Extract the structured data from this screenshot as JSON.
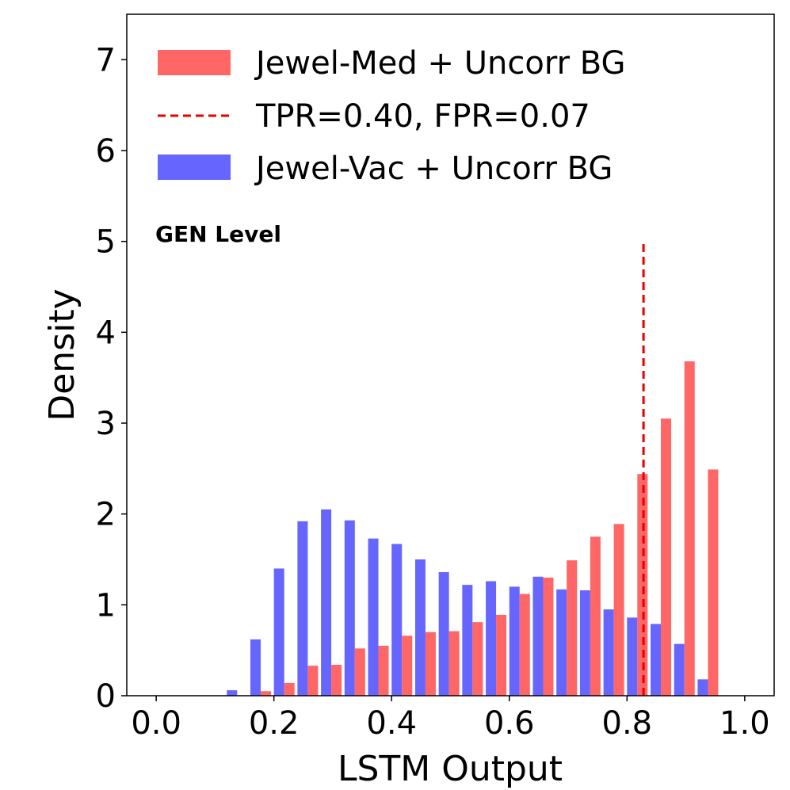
{
  "chart_data": {
    "type": "bar",
    "title": "",
    "xlabel": "LSTM Output",
    "ylabel": "Density",
    "xlim": [
      -0.05,
      1.05
    ],
    "ylim": [
      0,
      7.5
    ],
    "xticks": [
      0.0,
      0.2,
      0.4,
      0.6,
      0.8,
      1.0
    ],
    "xtick_labels": [
      "0.0",
      "0.2",
      "0.4",
      "0.6",
      "0.8",
      "1.0"
    ],
    "yticks": [
      0,
      1,
      2,
      3,
      4,
      5,
      6,
      7
    ],
    "ytick_labels": [
      "0",
      "1",
      "2",
      "3",
      "4",
      "5",
      "6",
      "7"
    ],
    "bin_width": 0.04,
    "bin_starts": [
      0.0,
      0.04,
      0.08,
      0.12,
      0.16,
      0.2,
      0.24,
      0.28,
      0.32,
      0.36,
      0.4,
      0.44,
      0.48,
      0.52,
      0.56,
      0.6,
      0.64,
      0.68,
      0.72,
      0.76,
      0.8,
      0.84,
      0.88,
      0.92,
      0.96
    ],
    "series": [
      {
        "name": "Jewel-Med + Uncorr BG",
        "color": "#ff6666",
        "values": [
          0,
          0,
          0,
          0,
          0.05,
          0.14,
          0.33,
          0.34,
          0.52,
          0.55,
          0.66,
          0.7,
          0.71,
          0.81,
          0.89,
          1.12,
          1.3,
          1.49,
          1.75,
          1.89,
          2.44,
          3.05,
          3.68,
          2.49,
          0
        ]
      },
      {
        "name": "Jewel-Vac + Uncorr BG",
        "color": "#6666ff",
        "values": [
          0,
          0,
          0,
          0.06,
          0.62,
          1.4,
          1.92,
          2.05,
          1.93,
          1.73,
          1.67,
          1.5,
          1.36,
          1.22,
          1.26,
          1.2,
          1.31,
          1.17,
          1.16,
          0.95,
          0.86,
          0.79,
          0.57,
          0.18,
          0
        ]
      }
    ],
    "threshold": {
      "label": "TPR=0.40, FPR=0.07",
      "x": 0.828,
      "y_max": 5.0,
      "color": "#e60000"
    },
    "annotation": "GEN Level",
    "legend_position": "top-left"
  }
}
